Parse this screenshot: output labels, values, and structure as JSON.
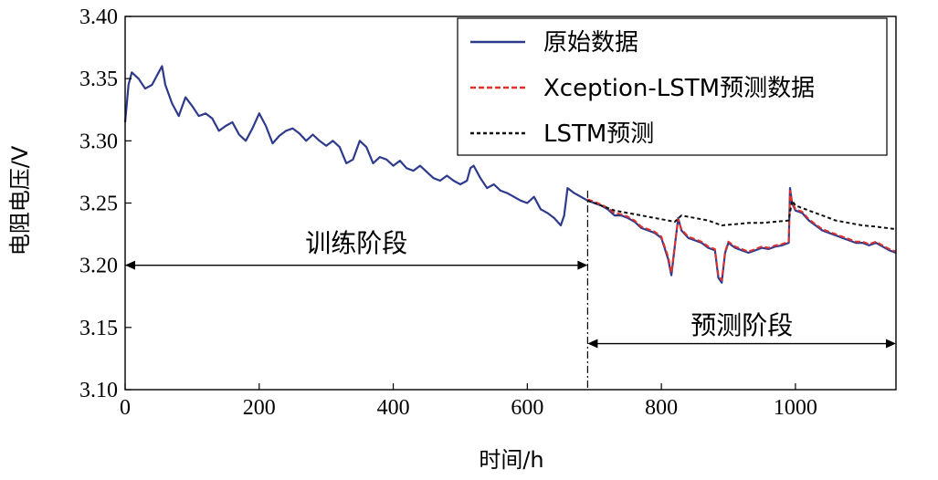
{
  "chart_data": {
    "type": "line",
    "title": "",
    "xlabel": "时间/h",
    "ylabel": "电阻电压/V",
    "xlim": [
      0,
      1150
    ],
    "ylim": [
      3.1,
      3.4
    ],
    "grid": false,
    "x_ticks": [
      0,
      200,
      400,
      600,
      800,
      1000
    ],
    "x_tick_labels": [
      "0",
      "200",
      "400",
      "600",
      "800",
      "1000"
    ],
    "y_ticks": [
      3.1,
      3.15,
      3.2,
      3.25,
      3.3,
      3.35,
      3.4
    ],
    "y_tick_labels": [
      "3.10",
      "3.15",
      "3.20",
      "3.25",
      "3.30",
      "3.35",
      "3.40"
    ],
    "legend_position": "top-right",
    "split_x": 690,
    "annotations": [
      {
        "text": "训练阶段",
        "x_from": 0,
        "x_to": 690,
        "y": 3.2,
        "label_y": 3.218
      },
      {
        "text": "预测阶段",
        "x_from": 690,
        "x_to": 1150,
        "y": 3.137,
        "label_y": 3.152
      }
    ],
    "series": [
      {
        "name": "原始数据",
        "color": "#2e3a8c",
        "style": "solid",
        "x": [
          0,
          5,
          10,
          20,
          30,
          40,
          50,
          55,
          60,
          70,
          80,
          90,
          100,
          110,
          120,
          130,
          140,
          150,
          160,
          170,
          180,
          190,
          200,
          210,
          220,
          230,
          240,
          250,
          260,
          270,
          280,
          290,
          300,
          310,
          320,
          330,
          340,
          350,
          360,
          370,
          380,
          390,
          400,
          410,
          420,
          430,
          440,
          450,
          460,
          470,
          480,
          490,
          500,
          510,
          515,
          520,
          530,
          540,
          550,
          560,
          570,
          580,
          590,
          600,
          610,
          620,
          630,
          640,
          650,
          655,
          660,
          670,
          680,
          690,
          700,
          710,
          720,
          730,
          740,
          750,
          760,
          770,
          780,
          790,
          800,
          810,
          815,
          820,
          825,
          830,
          840,
          850,
          860,
          870,
          880,
          885,
          890,
          895,
          900,
          910,
          920,
          930,
          940,
          950,
          960,
          970,
          980,
          990,
          992,
          995,
          1000,
          1010,
          1020,
          1030,
          1040,
          1050,
          1060,
          1070,
          1080,
          1090,
          1100,
          1110,
          1120,
          1130,
          1140,
          1150
        ],
        "values": [
          3.315,
          3.345,
          3.355,
          3.35,
          3.342,
          3.345,
          3.355,
          3.36,
          3.345,
          3.33,
          3.32,
          3.335,
          3.328,
          3.32,
          3.322,
          3.318,
          3.308,
          3.312,
          3.315,
          3.305,
          3.3,
          3.31,
          3.322,
          3.312,
          3.298,
          3.304,
          3.308,
          3.31,
          3.306,
          3.3,
          3.305,
          3.3,
          3.296,
          3.3,
          3.295,
          3.282,
          3.285,
          3.3,
          3.295,
          3.282,
          3.287,
          3.285,
          3.28,
          3.284,
          3.278,
          3.276,
          3.28,
          3.275,
          3.27,
          3.268,
          3.272,
          3.268,
          3.265,
          3.268,
          3.278,
          3.28,
          3.27,
          3.262,
          3.265,
          3.26,
          3.258,
          3.255,
          3.252,
          3.25,
          3.255,
          3.245,
          3.242,
          3.238,
          3.232,
          3.24,
          3.262,
          3.258,
          3.255,
          3.252,
          3.25,
          3.248,
          3.245,
          3.24,
          3.24,
          3.238,
          3.235,
          3.23,
          3.228,
          3.226,
          3.222,
          3.205,
          3.192,
          3.215,
          3.238,
          3.228,
          3.222,
          3.22,
          3.218,
          3.214,
          3.212,
          3.19,
          3.186,
          3.21,
          3.218,
          3.214,
          3.212,
          3.21,
          3.212,
          3.214,
          3.213,
          3.215,
          3.216,
          3.218,
          3.262,
          3.25,
          3.244,
          3.242,
          3.236,
          3.232,
          3.228,
          3.226,
          3.224,
          3.222,
          3.22,
          3.218,
          3.218,
          3.216,
          3.218,
          3.215,
          3.212,
          3.21
        ]
      },
      {
        "name": "Xception-LSTM预测数据",
        "color": "#e0322d",
        "style": "dashed",
        "x": [
          690,
          700,
          710,
          720,
          730,
          740,
          750,
          760,
          770,
          780,
          790,
          800,
          810,
          815,
          820,
          825,
          830,
          840,
          850,
          860,
          870,
          880,
          885,
          890,
          895,
          900,
          910,
          920,
          930,
          940,
          950,
          960,
          970,
          980,
          990,
          992,
          995,
          1000,
          1010,
          1020,
          1030,
          1040,
          1050,
          1060,
          1070,
          1080,
          1090,
          1100,
          1110,
          1120,
          1130,
          1140,
          1150
        ],
        "values": [
          3.253,
          3.251,
          3.249,
          3.246,
          3.242,
          3.241,
          3.239,
          3.236,
          3.231,
          3.229,
          3.227,
          3.223,
          3.207,
          3.194,
          3.216,
          3.237,
          3.229,
          3.223,
          3.221,
          3.219,
          3.215,
          3.213,
          3.192,
          3.188,
          3.211,
          3.219,
          3.215,
          3.213,
          3.211,
          3.213,
          3.215,
          3.214,
          3.216,
          3.217,
          3.219,
          3.26,
          3.251,
          3.245,
          3.243,
          3.237,
          3.233,
          3.229,
          3.227,
          3.225,
          3.223,
          3.221,
          3.219,
          3.219,
          3.217,
          3.219,
          3.216,
          3.213,
          3.211
        ]
      },
      {
        "name": "LSTM预测",
        "color": "#111111",
        "style": "dotted",
        "x": [
          690,
          710,
          730,
          750,
          770,
          790,
          810,
          820,
          830,
          850,
          870,
          890,
          910,
          930,
          950,
          970,
          990,
          995,
          1000,
          1020,
          1040,
          1060,
          1080,
          1100,
          1120,
          1150
        ],
        "values": [
          3.252,
          3.248,
          3.244,
          3.242,
          3.24,
          3.238,
          3.236,
          3.235,
          3.24,
          3.238,
          3.236,
          3.232,
          3.233,
          3.234,
          3.234,
          3.235,
          3.236,
          3.252,
          3.248,
          3.244,
          3.24,
          3.236,
          3.234,
          3.232,
          3.231,
          3.229
        ]
      }
    ]
  }
}
